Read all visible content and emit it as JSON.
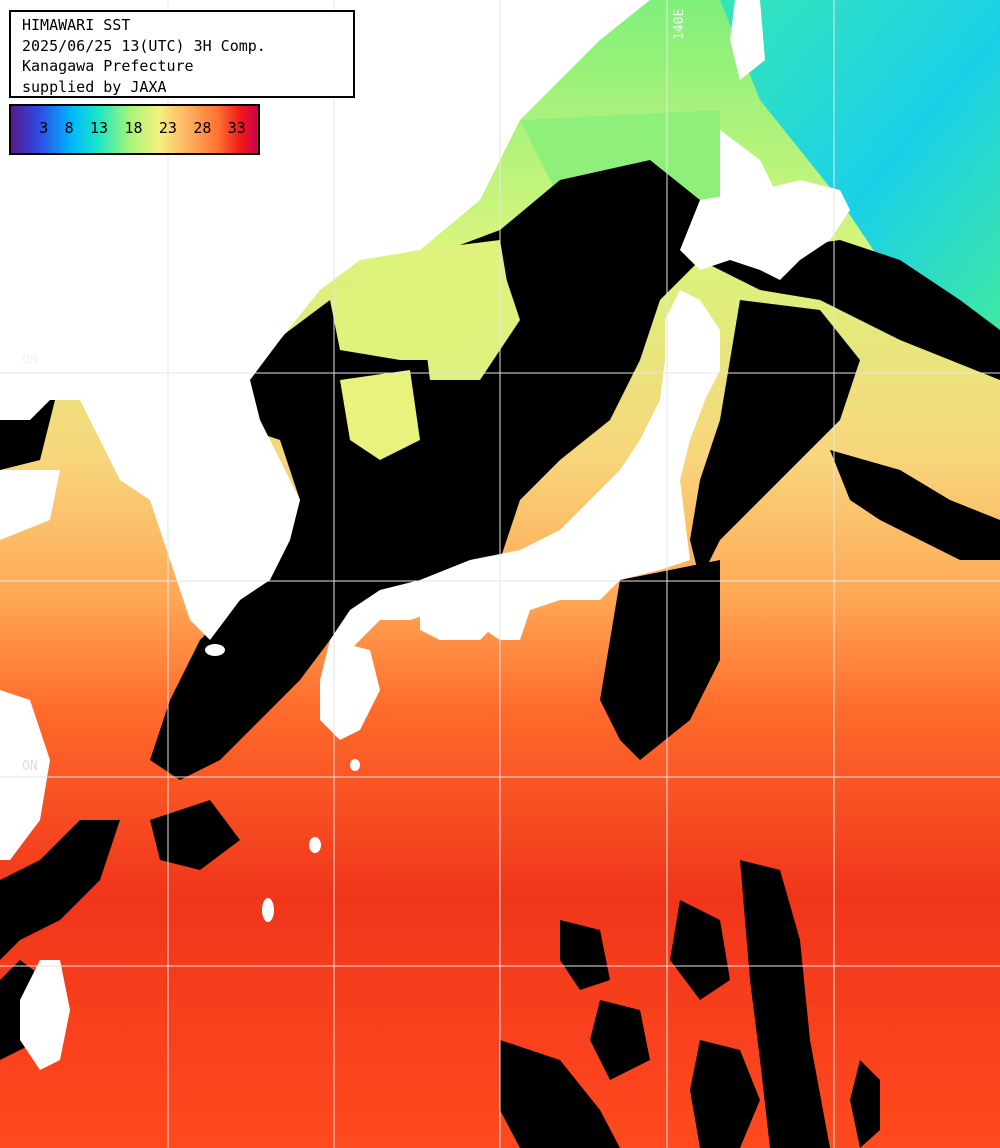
{
  "header": {
    "line1": "HIMAWARI SST",
    "line2": "2025/06/25 13(UTC) 3H Comp.",
    "line3": "Kanagawa Prefecture",
    "line4": "supplied by JAXA"
  },
  "legend": {
    "ticks": [
      "3",
      "8",
      "13",
      "18",
      "23",
      "28",
      "33"
    ],
    "stops": [
      "#5a1a8c",
      "#2f47e0",
      "#00b4ff",
      "#18e6c8",
      "#a6f47a",
      "#f6f080",
      "#ffb060",
      "#ff7030",
      "#f01818",
      "#c80050"
    ]
  },
  "grid_labels": {
    "lon_140": "140E",
    "lat_40": "ON",
    "lat_30": "ON"
  },
  "colors": {
    "land": "#ffffff",
    "no_data": "#000000",
    "grid": "#e6e6e6"
  }
}
